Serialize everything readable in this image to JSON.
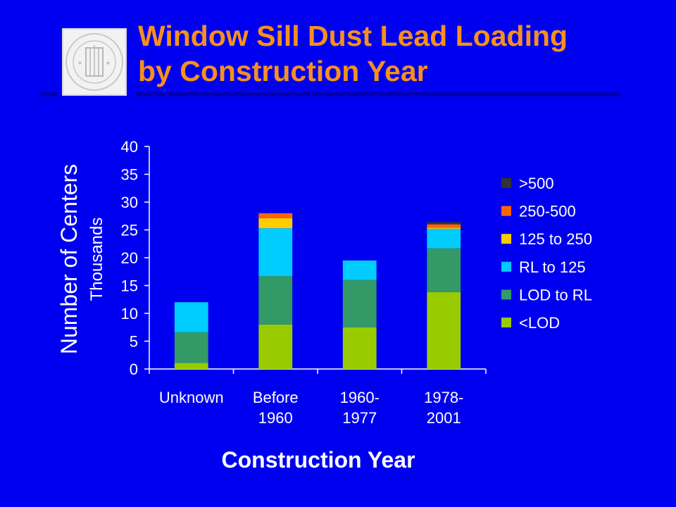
{
  "slide": {
    "title_line1": "Window Sill Dust Lead Loading",
    "title_line2": "by Construction Year"
  },
  "colors": {
    "background": "#0000f0",
    "title": "#f5901e",
    "rule": "#0000b0",
    "text": "#ffffff"
  },
  "chart_data": {
    "type": "bar",
    "stacked": true,
    "title": "",
    "xlabel": "Construction Year",
    "ylabel": "Number of Centers",
    "ylabel_units": "Thousands",
    "ylim": [
      0,
      40
    ],
    "yticks": [
      0,
      5,
      10,
      15,
      20,
      25,
      30,
      35,
      40
    ],
    "grid": false,
    "legend_position": "right",
    "categories": [
      "Unknown",
      "Before 1960",
      "1960-1977",
      "1978-2001"
    ],
    "category_lines": [
      [
        "Unknown"
      ],
      [
        "Before",
        "1960"
      ],
      [
        "1960-",
        "1977"
      ],
      [
        "1978-",
        "2001"
      ]
    ],
    "series": [
      {
        "name": "<LOD",
        "color": "#99cc00",
        "values": [
          1.1,
          8.0,
          7.5,
          13.8
        ]
      },
      {
        "name": "LOD to RL",
        "color": "#339966",
        "values": [
          5.5,
          8.7,
          8.5,
          7.9
        ]
      },
      {
        "name": "RL to 125",
        "color": "#00ccff",
        "values": [
          5.4,
          8.6,
          3.5,
          3.5
        ]
      },
      {
        "name": "125 to 250",
        "color": "#ffcc00",
        "values": [
          0,
          1.8,
          0,
          0.2
        ]
      },
      {
        "name": "250-500",
        "color": "#ff6600",
        "values": [
          0,
          0.9,
          0,
          0.6
        ]
      },
      {
        "name": ">500",
        "color": "#333333",
        "values": [
          0,
          0,
          0,
          0.4
        ]
      }
    ]
  }
}
